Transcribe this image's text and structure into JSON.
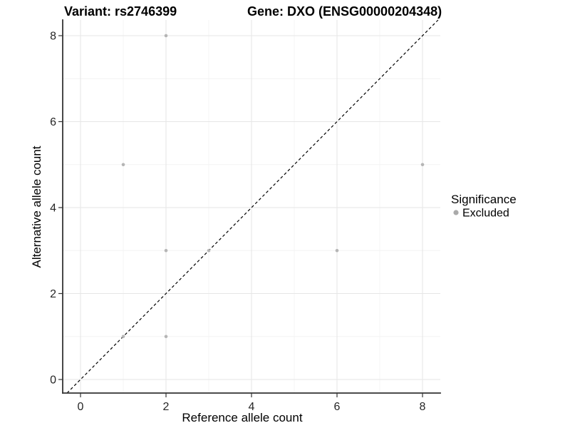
{
  "figure": {
    "title_left": "Variant: rs2746399",
    "title_right": "Gene: DXO (ENSG00000204348)"
  },
  "chart_data": {
    "type": "scatter",
    "title": "Variant: rs2746399 | Gene: DXO (ENSG00000204348)",
    "xlabel": "Reference allele count",
    "ylabel": "Alternative allele count",
    "xlim": [
      0,
      8
    ],
    "ylim": [
      0,
      8
    ],
    "x_ticks": [
      0,
      2,
      4,
      6,
      8
    ],
    "y_ticks": [
      0,
      2,
      4,
      6,
      8
    ],
    "x_minor_gridlines": [
      1,
      3,
      5,
      7
    ],
    "y_minor_gridlines": [
      1,
      3,
      5,
      7
    ],
    "grid": true,
    "identity_line": {
      "slope": 1,
      "intercept": 0,
      "style": "dashed",
      "color": "#000000"
    },
    "series": [
      {
        "name": "Excluded",
        "color": "#b5b5b5",
        "points": [
          [
            1,
            1
          ],
          [
            1,
            5
          ],
          [
            2,
            1
          ],
          [
            2,
            3
          ],
          [
            2,
            8
          ],
          [
            3,
            3
          ],
          [
            6,
            3
          ],
          [
            8,
            5
          ]
        ]
      }
    ],
    "legend": {
      "title": "Significance",
      "position": "right",
      "entries": [
        {
          "label": "Excluded",
          "color": "#aaaaaa"
        }
      ]
    }
  },
  "colors": {
    "point": "#b5b5b5",
    "identity_line": "#000000",
    "axis_line": "#333333",
    "grid_major": "#e6e6e6",
    "grid_minor": "#f3f3f3",
    "background": "#ffffff"
  }
}
